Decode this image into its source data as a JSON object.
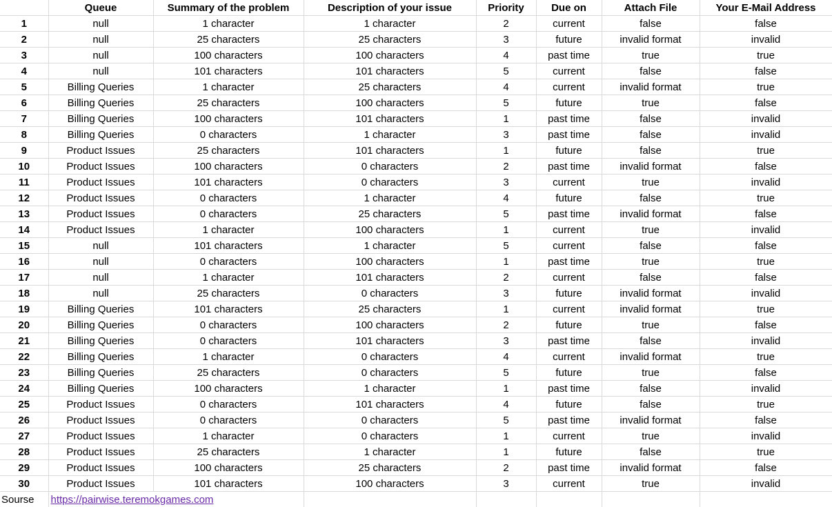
{
  "headers": [
    "",
    "Queue",
    "Summary of the problem",
    "Description of your issue",
    "Priority",
    "Due on",
    "Attach File",
    "Your E-Mail Address"
  ],
  "rows": [
    [
      "1",
      "null",
      "1 character",
      "1 character",
      "2",
      "current",
      "false",
      "false"
    ],
    [
      "2",
      "null",
      "25 characters",
      "25 characters",
      "3",
      "future",
      "invalid format",
      "invalid"
    ],
    [
      "3",
      "null",
      "100 characters",
      "100 characters",
      "4",
      "past time",
      "true",
      "true"
    ],
    [
      "4",
      "null",
      "101 characters",
      "101 characters",
      "5",
      "current",
      "false",
      "false"
    ],
    [
      "5",
      "Billing Queries",
      "1 character",
      "25 characters",
      "4",
      "current",
      "invalid format",
      "true"
    ],
    [
      "6",
      "Billing Queries",
      "25 characters",
      "100 characters",
      "5",
      "future",
      "true",
      "false"
    ],
    [
      "7",
      "Billing Queries",
      "100 characters",
      "101 characters",
      "1",
      "past time",
      "false",
      "invalid"
    ],
    [
      "8",
      "Billing Queries",
      "0 characters",
      "1 character",
      "3",
      "past time",
      "false",
      "invalid"
    ],
    [
      "9",
      "Product Issues",
      "25 characters",
      "101 characters",
      "1",
      "future",
      "false",
      "true"
    ],
    [
      "10",
      "Product Issues",
      "100 characters",
      "0 characters",
      "2",
      "past time",
      "invalid format",
      "false"
    ],
    [
      "11",
      "Product Issues",
      "101 characters",
      "0 characters",
      "3",
      "current",
      "true",
      "invalid"
    ],
    [
      "12",
      "Product Issues",
      "0 characters",
      "1 character",
      "4",
      "future",
      "false",
      "true"
    ],
    [
      "13",
      "Product Issues",
      "0 characters",
      "25 characters",
      "5",
      "past time",
      "invalid format",
      "false"
    ],
    [
      "14",
      "Product Issues",
      "1 character",
      "100 characters",
      "1",
      "current",
      "true",
      "invalid"
    ],
    [
      "15",
      "null",
      "101 characters",
      "1 character",
      "5",
      "current",
      "false",
      "false"
    ],
    [
      "16",
      "null",
      "0 characters",
      "100 characters",
      "1",
      "past time",
      "true",
      "true"
    ],
    [
      "17",
      "null",
      "1 character",
      "101 characters",
      "2",
      "current",
      "false",
      "false"
    ],
    [
      "18",
      "null",
      "25 characters",
      "0 characters",
      "3",
      "future",
      "invalid format",
      "invalid"
    ],
    [
      "19",
      "Billing Queries",
      "101 characters",
      "25 characters",
      "1",
      "current",
      "invalid format",
      "true"
    ],
    [
      "20",
      "Billing Queries",
      "0 characters",
      "100 characters",
      "2",
      "future",
      "true",
      "false"
    ],
    [
      "21",
      "Billing Queries",
      "0 characters",
      "101 characters",
      "3",
      "past time",
      "false",
      "invalid"
    ],
    [
      "22",
      "Billing Queries",
      "1 character",
      "0 characters",
      "4",
      "current",
      "invalid format",
      "true"
    ],
    [
      "23",
      "Billing Queries",
      "25 characters",
      "0 characters",
      "5",
      "future",
      "true",
      "false"
    ],
    [
      "24",
      "Billing Queries",
      "100 characters",
      "1 character",
      "1",
      "past time",
      "false",
      "invalid"
    ],
    [
      "25",
      "Product Issues",
      "0 characters",
      "101 characters",
      "4",
      "future",
      "false",
      "true"
    ],
    [
      "26",
      "Product Issues",
      "0 characters",
      "0 characters",
      "5",
      "past time",
      "invalid format",
      "false"
    ],
    [
      "27",
      "Product Issues",
      "1 character",
      "0 characters",
      "1",
      "current",
      "true",
      "invalid"
    ],
    [
      "28",
      "Product Issues",
      "25 characters",
      "1 character",
      "1",
      "future",
      "false",
      "true"
    ],
    [
      "29",
      "Product Issues",
      "100 characters",
      "25 characters",
      "2",
      "past time",
      "invalid format",
      "false"
    ],
    [
      "30",
      "Product Issues",
      "101 characters",
      "100 characters",
      "3",
      "current",
      "true",
      "invalid"
    ]
  ],
  "source": {
    "label": "Sourse",
    "link_text": "https://pairwise.teremokgames.com"
  }
}
